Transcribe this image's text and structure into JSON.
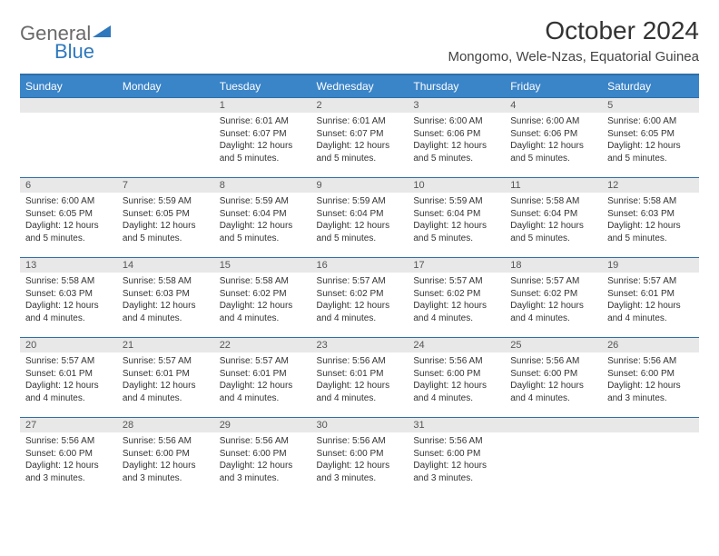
{
  "logo": {
    "text1": "General",
    "text2": "Blue"
  },
  "title": "October 2024",
  "location": "Mongomo, Wele-Nzas, Equatorial Guinea",
  "colors": {
    "header_bg": "#3a84c8",
    "header_border": "#2f6fa8",
    "daynum_bg": "#e8e8e8",
    "text": "#333333",
    "logo_gray": "#6a6a6a",
    "logo_blue": "#2f78bd"
  },
  "day_headers": [
    "Sunday",
    "Monday",
    "Tuesday",
    "Wednesday",
    "Thursday",
    "Friday",
    "Saturday"
  ],
  "weeks": [
    [
      null,
      null,
      {
        "n": "1",
        "sr": "6:01 AM",
        "ss": "6:07 PM",
        "dl": "12 hours and 5 minutes."
      },
      {
        "n": "2",
        "sr": "6:01 AM",
        "ss": "6:07 PM",
        "dl": "12 hours and 5 minutes."
      },
      {
        "n": "3",
        "sr": "6:00 AM",
        "ss": "6:06 PM",
        "dl": "12 hours and 5 minutes."
      },
      {
        "n": "4",
        "sr": "6:00 AM",
        "ss": "6:06 PM",
        "dl": "12 hours and 5 minutes."
      },
      {
        "n": "5",
        "sr": "6:00 AM",
        "ss": "6:05 PM",
        "dl": "12 hours and 5 minutes."
      }
    ],
    [
      {
        "n": "6",
        "sr": "6:00 AM",
        "ss": "6:05 PM",
        "dl": "12 hours and 5 minutes."
      },
      {
        "n": "7",
        "sr": "5:59 AM",
        "ss": "6:05 PM",
        "dl": "12 hours and 5 minutes."
      },
      {
        "n": "8",
        "sr": "5:59 AM",
        "ss": "6:04 PM",
        "dl": "12 hours and 5 minutes."
      },
      {
        "n": "9",
        "sr": "5:59 AM",
        "ss": "6:04 PM",
        "dl": "12 hours and 5 minutes."
      },
      {
        "n": "10",
        "sr": "5:59 AM",
        "ss": "6:04 PM",
        "dl": "12 hours and 5 minutes."
      },
      {
        "n": "11",
        "sr": "5:58 AM",
        "ss": "6:04 PM",
        "dl": "12 hours and 5 minutes."
      },
      {
        "n": "12",
        "sr": "5:58 AM",
        "ss": "6:03 PM",
        "dl": "12 hours and 5 minutes."
      }
    ],
    [
      {
        "n": "13",
        "sr": "5:58 AM",
        "ss": "6:03 PM",
        "dl": "12 hours and 4 minutes."
      },
      {
        "n": "14",
        "sr": "5:58 AM",
        "ss": "6:03 PM",
        "dl": "12 hours and 4 minutes."
      },
      {
        "n": "15",
        "sr": "5:58 AM",
        "ss": "6:02 PM",
        "dl": "12 hours and 4 minutes."
      },
      {
        "n": "16",
        "sr": "5:57 AM",
        "ss": "6:02 PM",
        "dl": "12 hours and 4 minutes."
      },
      {
        "n": "17",
        "sr": "5:57 AM",
        "ss": "6:02 PM",
        "dl": "12 hours and 4 minutes."
      },
      {
        "n": "18",
        "sr": "5:57 AM",
        "ss": "6:02 PM",
        "dl": "12 hours and 4 minutes."
      },
      {
        "n": "19",
        "sr": "5:57 AM",
        "ss": "6:01 PM",
        "dl": "12 hours and 4 minutes."
      }
    ],
    [
      {
        "n": "20",
        "sr": "5:57 AM",
        "ss": "6:01 PM",
        "dl": "12 hours and 4 minutes."
      },
      {
        "n": "21",
        "sr": "5:57 AM",
        "ss": "6:01 PM",
        "dl": "12 hours and 4 minutes."
      },
      {
        "n": "22",
        "sr": "5:57 AM",
        "ss": "6:01 PM",
        "dl": "12 hours and 4 minutes."
      },
      {
        "n": "23",
        "sr": "5:56 AM",
        "ss": "6:01 PM",
        "dl": "12 hours and 4 minutes."
      },
      {
        "n": "24",
        "sr": "5:56 AM",
        "ss": "6:00 PM",
        "dl": "12 hours and 4 minutes."
      },
      {
        "n": "25",
        "sr": "5:56 AM",
        "ss": "6:00 PM",
        "dl": "12 hours and 4 minutes."
      },
      {
        "n": "26",
        "sr": "5:56 AM",
        "ss": "6:00 PM",
        "dl": "12 hours and 3 minutes."
      }
    ],
    [
      {
        "n": "27",
        "sr": "5:56 AM",
        "ss": "6:00 PM",
        "dl": "12 hours and 3 minutes."
      },
      {
        "n": "28",
        "sr": "5:56 AM",
        "ss": "6:00 PM",
        "dl": "12 hours and 3 minutes."
      },
      {
        "n": "29",
        "sr": "5:56 AM",
        "ss": "6:00 PM",
        "dl": "12 hours and 3 minutes."
      },
      {
        "n": "30",
        "sr": "5:56 AM",
        "ss": "6:00 PM",
        "dl": "12 hours and 3 minutes."
      },
      {
        "n": "31",
        "sr": "5:56 AM",
        "ss": "6:00 PM",
        "dl": "12 hours and 3 minutes."
      },
      null,
      null
    ]
  ],
  "labels": {
    "sunrise": "Sunrise: ",
    "sunset": "Sunset: ",
    "daylight": "Daylight: "
  }
}
